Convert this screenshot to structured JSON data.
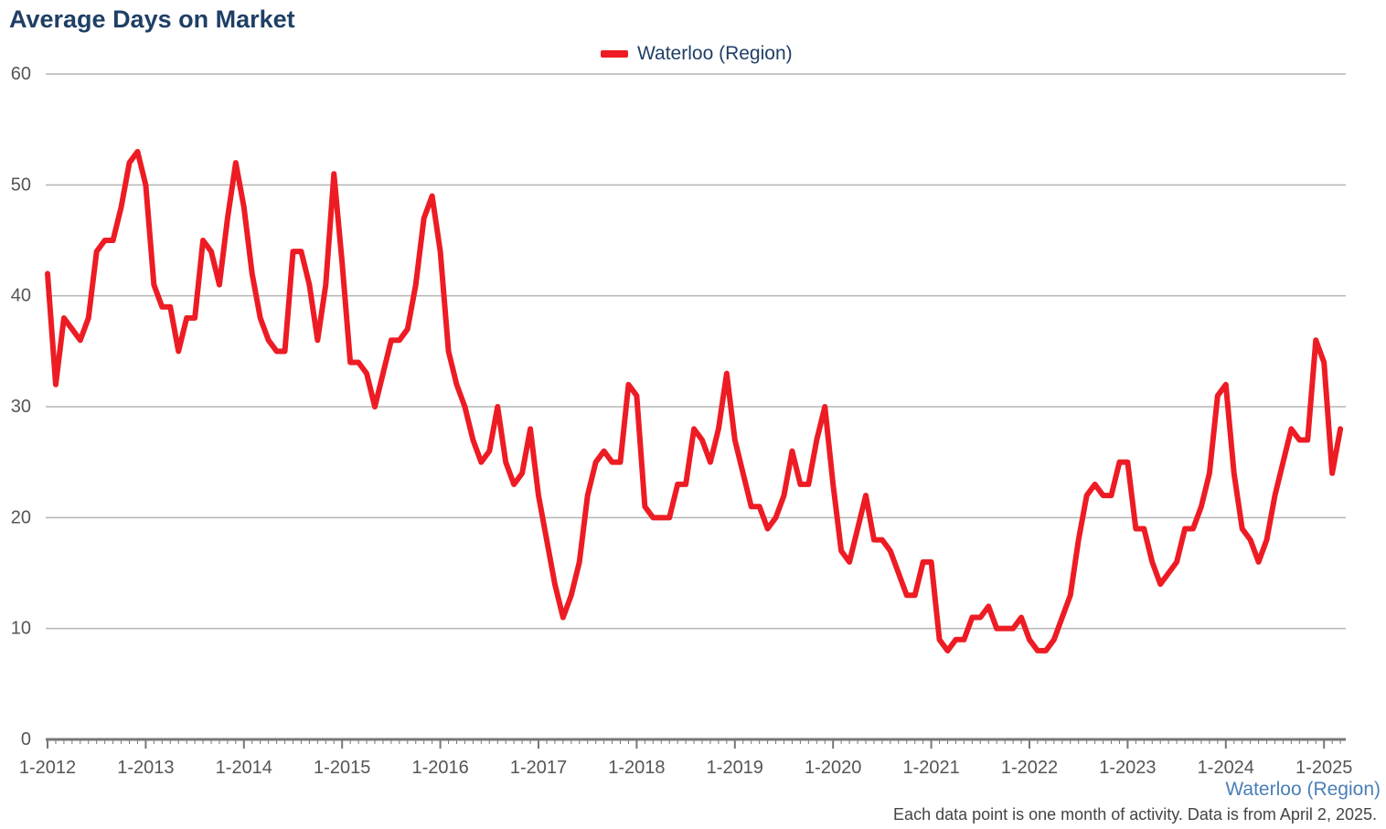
{
  "chart_data": {
    "type": "line",
    "title": "Average Days on Market",
    "xlabel": "",
    "ylabel": "",
    "ylim": [
      0,
      60
    ],
    "yticks": [
      0,
      10,
      20,
      30,
      40,
      50,
      60
    ],
    "xticks": [
      "1-2012",
      "1-2013",
      "1-2014",
      "1-2015",
      "1-2016",
      "1-2017",
      "1-2018",
      "1-2019",
      "1-2020",
      "1-2021",
      "1-2022",
      "1-2023",
      "1-2024",
      "1-2025"
    ],
    "x_start": "2012-01",
    "x_frequency": "monthly",
    "grid": true,
    "legend_position": "top-center",
    "series": [
      {
        "name": "Waterloo (Region)",
        "color": "#ed1c24",
        "values": [
          42,
          32,
          38,
          37,
          36,
          38,
          44,
          45,
          45,
          48,
          52,
          53,
          50,
          41,
          39,
          39,
          35,
          38,
          38,
          45,
          44,
          41,
          47,
          52,
          48,
          42,
          38,
          36,
          35,
          35,
          44,
          44,
          41,
          36,
          41,
          51,
          43,
          34,
          34,
          33,
          30,
          33,
          36,
          36,
          37,
          41,
          47,
          49,
          44,
          35,
          32,
          30,
          27,
          25,
          26,
          30,
          25,
          23,
          24,
          28,
          22,
          18,
          14,
          11,
          13,
          16,
          22,
          25,
          26,
          25,
          25,
          32,
          31,
          21,
          20,
          20,
          20,
          23,
          23,
          28,
          27,
          25,
          28,
          33,
          27,
          24,
          21,
          21,
          19,
          20,
          22,
          26,
          23,
          23,
          27,
          30,
          23,
          17,
          16,
          19,
          22,
          18,
          18,
          17,
          15,
          13,
          13,
          16,
          16,
          9,
          8,
          9,
          9,
          11,
          11,
          12,
          10,
          10,
          10,
          11,
          9,
          8,
          8,
          9,
          11,
          13,
          18,
          22,
          23,
          22,
          22,
          25,
          25,
          19,
          19,
          16,
          14,
          15,
          16,
          19,
          19,
          21,
          24,
          31,
          32,
          24,
          19,
          18,
          16,
          18,
          22,
          25,
          28,
          27,
          27,
          36,
          34,
          24,
          28
        ]
      }
    ]
  },
  "source_label": "Waterloo (Region)",
  "footnote": "Each data point is one month of activity. Data is from April 2, 2025."
}
